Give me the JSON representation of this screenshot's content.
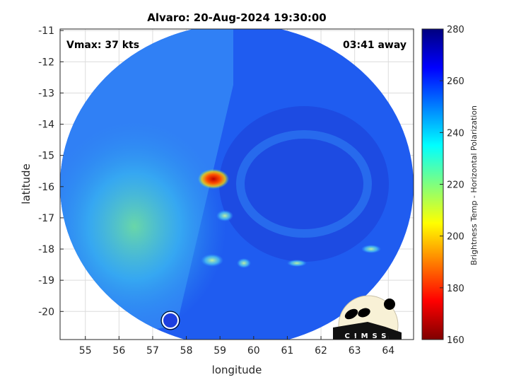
{
  "chart_data": {
    "type": "heatmap",
    "title": "Alvaro: 20-Aug-2024 19:30:00",
    "xlabel": "longitude",
    "ylabel": "latitude",
    "xlim": [
      54.25,
      64.75
    ],
    "ylim": [
      -20.9,
      -10.95
    ],
    "xticks": [
      "55",
      "56",
      "57",
      "58",
      "59",
      "60",
      "61",
      "62",
      "63",
      "64"
    ],
    "yticks": [
      "-11",
      "-12",
      "-13",
      "-14",
      "-15",
      "-16",
      "-17",
      "-18",
      "-19",
      "-20"
    ],
    "grid": true,
    "annotations": {
      "vmax": "Vmax: 37 kts",
      "time_offset": "03:41 away"
    },
    "colorbar": {
      "label": "Brightness Temp - Horizontal Polarization",
      "range": [
        160,
        280
      ],
      "ticks": [
        "280",
        "260",
        "240",
        "220",
        "200",
        "180",
        "160"
      ],
      "colormap": "jet-reversed",
      "colors": [
        "#00007f",
        "#0000ff",
        "#00bfff",
        "#7fff7f",
        "#ffff00",
        "#ff3f00",
        "#7f0000"
      ]
    },
    "features": {
      "coldest_spot": {
        "lon": 58.8,
        "lat": -15.8,
        "value_approx": 185
      },
      "min_range_region": "southwest-center warm cyan/green ~225-235",
      "background_typical": 262
    },
    "logo_text": "CIMSS"
  }
}
